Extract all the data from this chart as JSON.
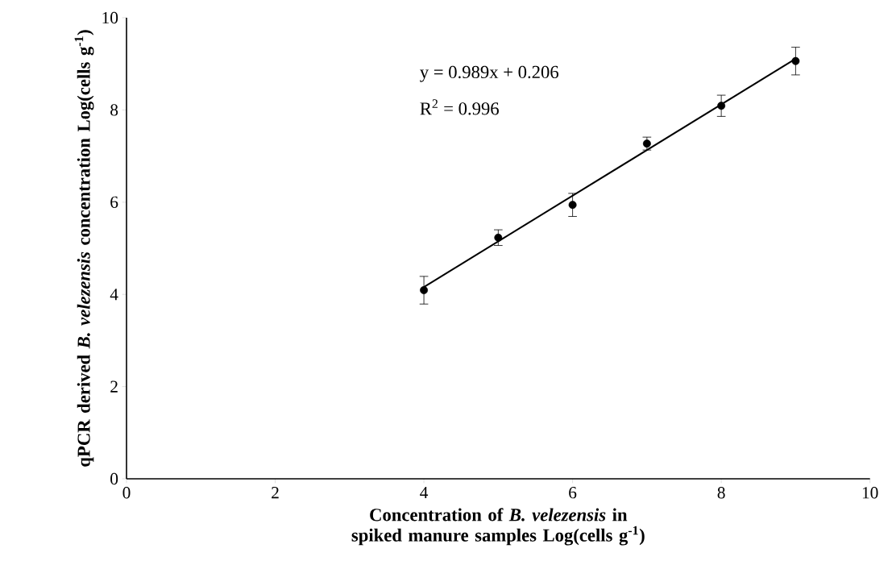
{
  "chart_data": {
    "type": "scatter",
    "xlabel": "Concentration of *B. velezensis* in spiked manure samples Log(cells g$^{-1}$)",
    "ylabel": "qPCR derived *B. velezensis* concentration Log(cells g$^{-1}$)",
    "annotations": [
      "y = 0.989x + 0.206",
      "R$^{2}$ = 0.996"
    ],
    "series": [
      {
        "color": "#000000",
        "marker": "circle",
        "x": [
          4,
          5,
          6,
          7,
          8,
          9
        ],
        "values": [
          4.09,
          5.23,
          5.94,
          7.27,
          8.09,
          9.06
        ],
        "errors": [
          0.3,
          0.17,
          0.25,
          0.14,
          0.23,
          0.3
        ]
      },
      {
        "type": "line",
        "color": "#000000",
        "marker": "none",
        "line_style": "solid",
        "x": [
          4,
          9
        ],
        "values": [
          4.16,
          9.11
        ]
      }
    ],
    "xlim": [
      0,
      10
    ],
    "ylim": [
      0,
      10
    ],
    "xticks": [
      0,
      2,
      4,
      6,
      8,
      10
    ],
    "yticks": [
      0,
      2,
      4,
      6,
      8,
      10
    ],
    "grid": false
  }
}
